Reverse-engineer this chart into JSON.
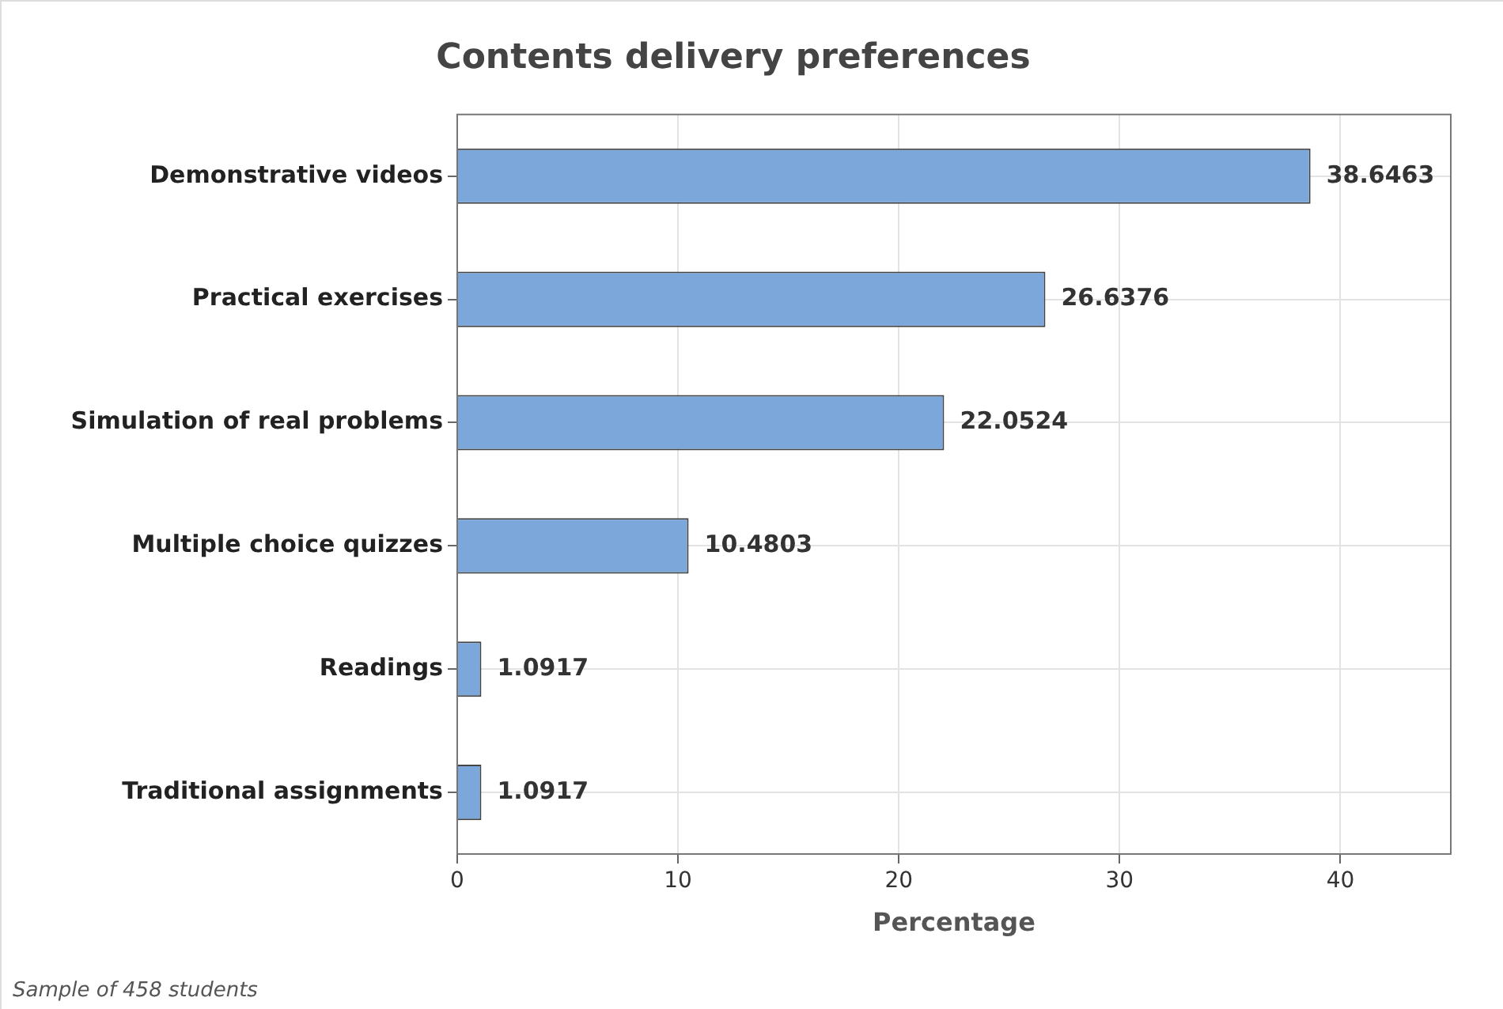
{
  "chart_data": {
    "type": "bar",
    "orientation": "horizontal",
    "title": "Contents delivery preferences",
    "xlabel": "Percentage",
    "categories": [
      "Demonstrative videos",
      "Practical exercises",
      "Simulation of real problems",
      "Multiple choice quizzes",
      "Readings",
      "Traditional assignments"
    ],
    "values": [
      38.6463,
      26.6376,
      22.0524,
      10.4803,
      1.0917,
      1.0917
    ],
    "color": "#7ba7da",
    "xlim": [
      0,
      45
    ],
    "xticks": [
      0,
      10,
      20,
      30,
      40
    ],
    "grid": true,
    "data_labels": true,
    "legend": false,
    "annotations": [
      "Sample of 458 students"
    ]
  }
}
